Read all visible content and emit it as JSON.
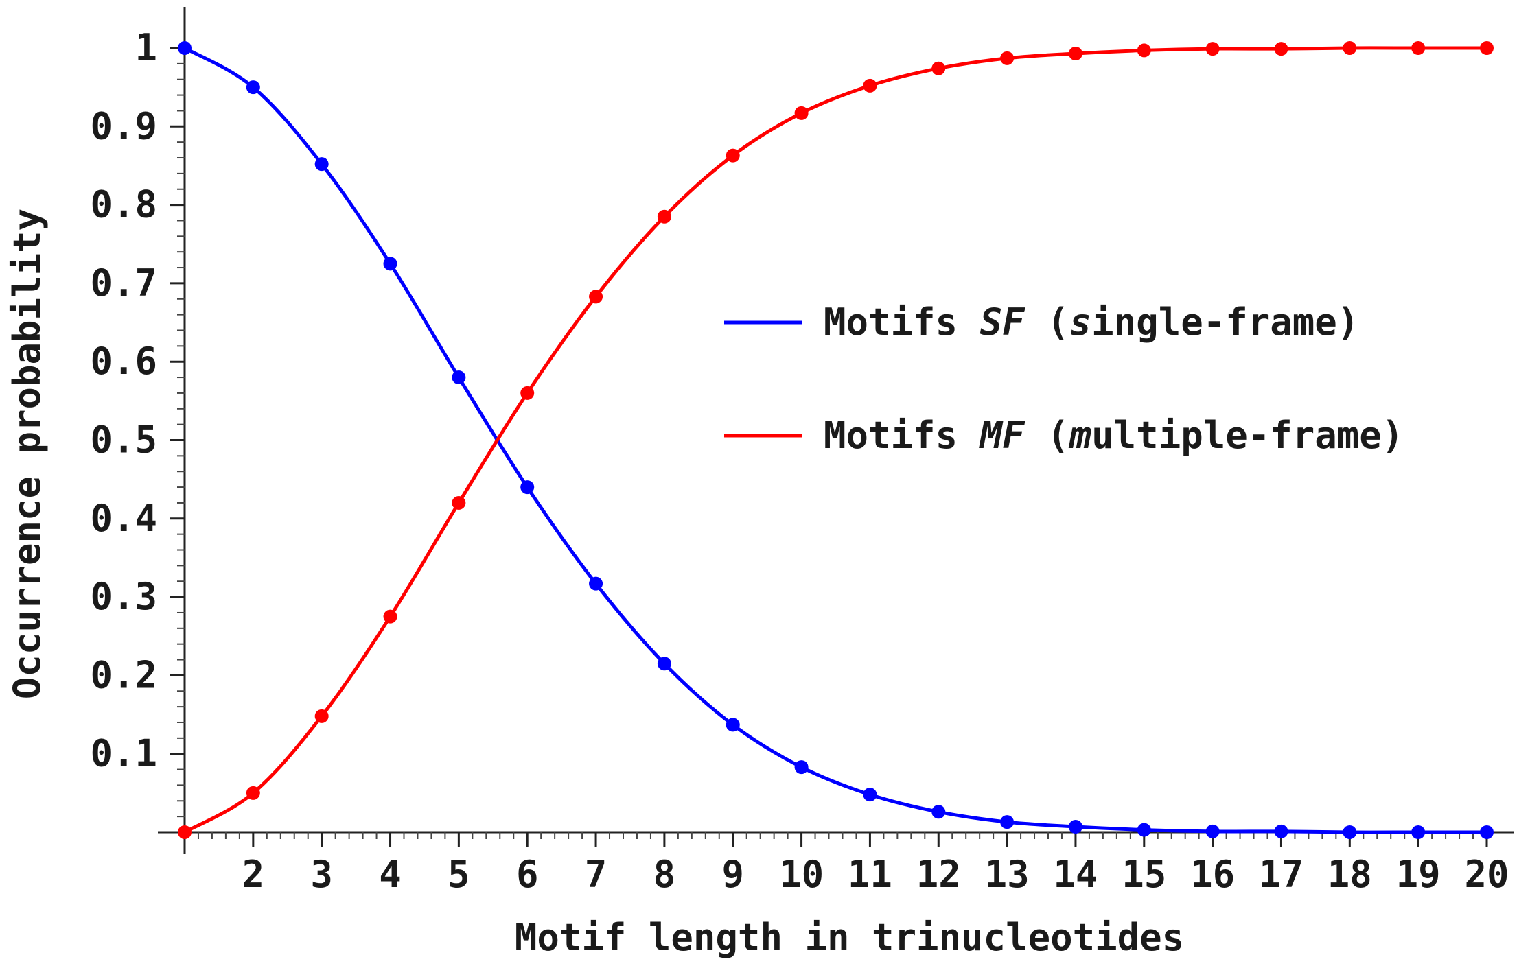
{
  "chart_data": {
    "type": "line",
    "xlabel": "Motif length in trinucleotides",
    "ylabel": "Occurrence probability",
    "x": [
      1,
      2,
      3,
      4,
      5,
      6,
      7,
      8,
      9,
      10,
      11,
      12,
      13,
      14,
      15,
      16,
      17,
      18,
      19,
      20
    ],
    "xlim": [
      1,
      20
    ],
    "ylim": [
      0,
      1
    ],
    "x_ticks": [
      2,
      3,
      4,
      5,
      6,
      7,
      8,
      9,
      10,
      11,
      12,
      13,
      14,
      15,
      16,
      17,
      18,
      19,
      20
    ],
    "y_ticks": [
      "0.1",
      "0.2",
      "0.3",
      "0.4",
      "0.5",
      "0.6",
      "0.7",
      "0.8",
      "0.9",
      "1"
    ],
    "y_tick_values": [
      0.1,
      0.2,
      0.3,
      0.4,
      0.5,
      0.6,
      0.7,
      0.8,
      0.9,
      1
    ],
    "grid": false,
    "legend_position": "right",
    "series": [
      {
        "name": "Motifs SF (single-frame)",
        "name_parts": [
          "Motifs ",
          "SF",
          " (",
          "s",
          "ingle-frame)"
        ],
        "color": "#0000ff",
        "values": [
          1.0,
          0.95,
          0.852,
          0.725,
          0.58,
          0.44,
          0.317,
          0.215,
          0.137,
          0.083,
          0.048,
          0.026,
          0.013,
          0.007,
          0.003,
          0.001,
          0.001,
          0.0,
          0.0,
          0.0
        ]
      },
      {
        "name": "Motifs MF (multiple-frame)",
        "name_parts": [
          "Motifs ",
          "MF",
          " (",
          "m",
          "ultiple-frame)"
        ],
        "color": "#ff0000",
        "values": [
          0.0,
          0.05,
          0.148,
          0.275,
          0.42,
          0.56,
          0.683,
          0.785,
          0.863,
          0.917,
          0.952,
          0.974,
          0.987,
          0.993,
          0.997,
          0.999,
          0.999,
          1.0,
          1.0,
          1.0
        ]
      }
    ]
  }
}
